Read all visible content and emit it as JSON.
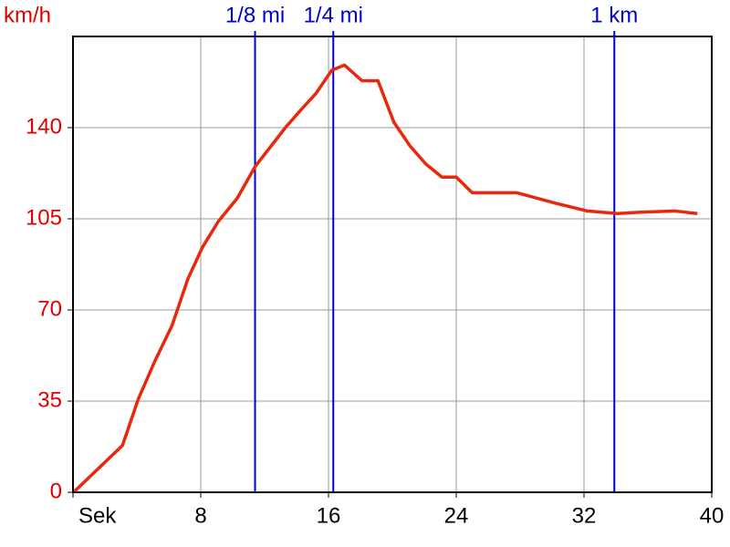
{
  "chart_data": {
    "type": "line",
    "y_label": "km/h",
    "x": [
      0.1,
      3.1,
      4.1,
      5.1,
      6.2,
      7.2,
      8.1,
      9.1,
      10.3,
      11.4,
      13.3,
      14.3,
      15.2,
      16.2,
      17.0,
      18.1,
      19.1,
      20.1,
      21.1,
      22.1,
      23.1,
      24.0,
      25.0,
      27.8,
      30.2,
      32.2,
      34.1,
      35.4,
      37.7,
      39.1
    ],
    "series": [
      {
        "color": "#e8280c",
        "values": [
          0.4,
          18,
          36,
          50,
          64,
          82,
          94,
          104,
          113,
          125,
          140,
          147,
          153,
          162,
          164,
          158,
          158,
          142,
          133,
          126,
          121,
          121,
          115,
          115,
          111,
          108,
          107,
          107.5,
          108,
          107
        ]
      }
    ],
    "xlim": [
      0,
      40
    ],
    "xticks": [
      {
        "value": 0,
        "label": "Sek"
      },
      8,
      16,
      24,
      32,
      40
    ],
    "ylim": [
      0,
      175
    ],
    "yticks": [
      0,
      35,
      70,
      105,
      140
    ],
    "grid": true,
    "markers": [
      {
        "label": "1/8 mi",
        "x": 11.4,
        "color": "#0000cc"
      },
      {
        "label": "1/4 mi",
        "x": 16.3,
        "color": "#0000cc"
      },
      {
        "label": "1 km",
        "x": 33.9,
        "color": "#0000cc"
      }
    ]
  }
}
